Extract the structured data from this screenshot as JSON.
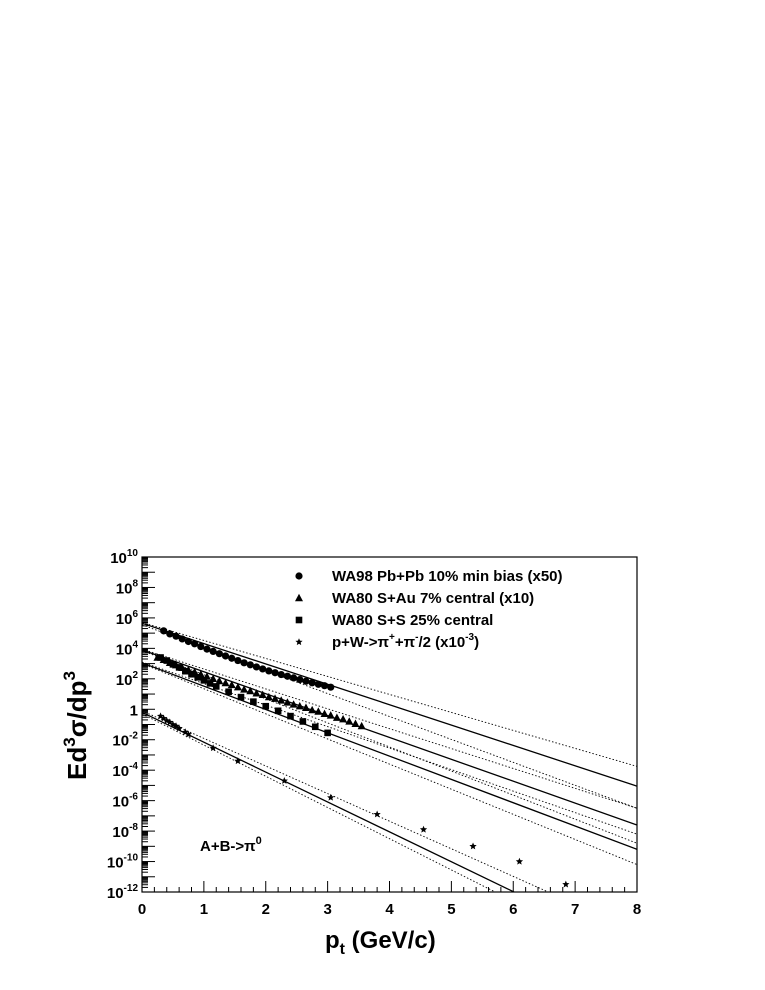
{
  "chart_data": {
    "type": "scatter",
    "title": "",
    "xlabel": "p_t (GeV/c)",
    "ylabel": "Ed^3σ/dp^3",
    "xlim": [
      0,
      8
    ],
    "ylim_log10": [
      -12,
      10
    ],
    "yscale": "log",
    "grid": false,
    "legend_position": "top-right",
    "annotation": "A+B->π^0",
    "x_ticks": [
      "0",
      "1",
      "2",
      "3",
      "4",
      "5",
      "6",
      "7",
      "8"
    ],
    "y_tick_exponents": [
      10,
      8,
      6,
      4,
      2,
      0,
      -2,
      -4,
      -6,
      -8,
      -10,
      -12
    ],
    "y_tick_one_label": "1",
    "y_tick_base": "10",
    "legend": [
      {
        "label": "WA98 Pb+Pb 10% min bias (x50)",
        "marker": "circle"
      },
      {
        "label": "WA80 S+Au 7% central (x10)",
        "marker": "triangle"
      },
      {
        "label": "WA80 S+S 25% central",
        "marker": "square"
      },
      {
        "label": "p+W->π^{+}+π^{-}/2 (x10^{-3})",
        "marker": "star"
      }
    ],
    "series": [
      {
        "name": "WA98 Pb+Pb 10% min bias (x50)",
        "marker": "circle",
        "x": [
          0.35,
          0.45,
          0.55,
          0.65,
          0.75,
          0.85,
          0.95,
          1.05,
          1.15,
          1.25,
          1.35,
          1.45,
          1.55,
          1.65,
          1.75,
          1.85,
          1.95,
          2.05,
          2.15,
          2.25,
          2.35,
          2.45,
          2.55,
          2.65,
          2.75,
          2.85,
          2.95,
          3.05
        ],
        "log10_y": [
          5.15,
          4.95,
          4.8,
          4.62,
          4.45,
          4.3,
          4.12,
          3.95,
          3.8,
          3.65,
          3.5,
          3.35,
          3.2,
          3.05,
          2.92,
          2.78,
          2.65,
          2.52,
          2.4,
          2.28,
          2.17,
          2.06,
          1.95,
          1.84,
          1.74,
          1.64,
          1.55,
          1.45
        ]
      },
      {
        "name": "WA80 S+Au 7% central (x10)",
        "marker": "triangle",
        "x": [
          0.25,
          0.35,
          0.45,
          0.55,
          0.65,
          0.75,
          0.85,
          0.95,
          1.05,
          1.15,
          1.25,
          1.35,
          1.45,
          1.55,
          1.65,
          1.75,
          1.85,
          1.95,
          2.05,
          2.15,
          2.25,
          2.35,
          2.45,
          2.55,
          2.65,
          2.75,
          2.85,
          2.95,
          3.05,
          3.15,
          3.25,
          3.35,
          3.45,
          3.55
        ],
        "log10_y": [
          3.4,
          3.25,
          3.05,
          2.9,
          2.72,
          2.58,
          2.45,
          2.3,
          2.15,
          2.0,
          1.85,
          1.72,
          1.6,
          1.45,
          1.3,
          1.2,
          1.05,
          0.95,
          0.8,
          0.7,
          0.58,
          0.45,
          0.32,
          0.2,
          0.1,
          -0.05,
          -0.15,
          -0.3,
          -0.4,
          -0.55,
          -0.65,
          -0.8,
          -0.95,
          -1.1
        ]
      },
      {
        "name": "WA80 S+S 25% central",
        "marker": "square",
        "x": [
          0.3,
          0.4,
          0.5,
          0.6,
          0.7,
          0.8,
          0.9,
          1.0,
          1.1,
          1.2,
          1.4,
          1.6,
          1.8,
          2.0,
          2.2,
          2.4,
          2.6,
          2.8,
          3.0
        ],
        "log10_y": [
          3.4,
          3.2,
          2.95,
          2.75,
          2.5,
          2.3,
          2.1,
          1.9,
          1.7,
          1.5,
          1.15,
          0.8,
          0.5,
          0.2,
          -0.1,
          -0.45,
          -0.8,
          -1.15,
          -1.55
        ]
      },
      {
        "name": "p+W->π^{+}+π^{-}/2 (x10^{-3})",
        "marker": "star",
        "x": [
          0.3,
          0.35,
          0.4,
          0.45,
          0.5,
          0.55,
          0.6,
          0.7,
          0.75,
          1.15,
          1.55,
          2.3,
          3.05,
          3.8,
          4.55,
          5.35,
          6.1,
          6.85
        ],
        "log10_y": [
          -0.45,
          -0.6,
          -0.75,
          -0.85,
          -1.0,
          -1.1,
          -1.25,
          -1.5,
          -1.65,
          -2.55,
          -3.4,
          -4.7,
          -5.8,
          -6.9,
          -7.9,
          -9.0,
          -10.0,
          -11.5
        ]
      }
    ],
    "curves": [
      {
        "style": "solid",
        "x": [
          0,
          8
        ],
        "log10_y": [
          5.65,
          -5.05
        ]
      },
      {
        "style": "dotted",
        "x": [
          0,
          8
        ],
        "log10_y": [
          5.7,
          -3.75
        ]
      },
      {
        "style": "dotted",
        "x": [
          0,
          8
        ],
        "log10_y": [
          5.55,
          -6.5
        ]
      },
      {
        "style": "solid",
        "x": [
          0,
          8
        ],
        "log10_y": [
          3.9,
          -7.6
        ]
      },
      {
        "style": "dotted",
        "x": [
          0,
          8
        ],
        "log10_y": [
          3.95,
          -6.5
        ]
      },
      {
        "style": "dotted",
        "x": [
          0,
          8
        ],
        "log10_y": [
          3.85,
          -8.8
        ]
      },
      {
        "style": "solid",
        "x": [
          0,
          8
        ],
        "log10_y": [
          3.05,
          -9.2
        ]
      },
      {
        "style": "dotted",
        "x": [
          0,
          8
        ],
        "log10_y": [
          3.1,
          -8.2
        ]
      },
      {
        "style": "dotted",
        "x": [
          0,
          8
        ],
        "log10_y": [
          3.0,
          -10.2
        ]
      },
      {
        "style": "solid",
        "x": [
          0,
          8
        ],
        "log10_y": [
          -0.2,
          -15.9
        ]
      },
      {
        "style": "dotted",
        "x": [
          0,
          8
        ],
        "log10_y": [
          -0.1,
          -14.6
        ]
      },
      {
        "style": "dotted",
        "x": [
          0,
          8
        ],
        "log10_y": [
          -0.3,
          -16.7
        ]
      }
    ]
  }
}
